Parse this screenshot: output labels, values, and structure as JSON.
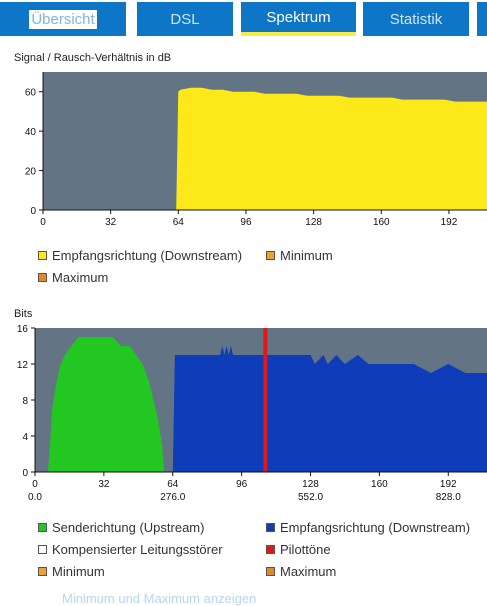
{
  "tabs": [
    {
      "label": "Übersicht",
      "active": false
    },
    {
      "label": "DSL",
      "active": false
    },
    {
      "label": "Spektrum",
      "active": true
    },
    {
      "label": "Statistik",
      "active": false
    }
  ],
  "colors": {
    "tab_bg": "#0d76c6",
    "tab_active_underline": "#f3ed45",
    "plot_bg": "#637584",
    "downstream_snr": "#fde91a",
    "upstream_bits": "#22c722",
    "downstream_bits": "#0f3cb8",
    "pilot": "#e01818",
    "minimum": "#f0a030",
    "maximum": "#e08828",
    "noise": "#ffffff"
  },
  "snr_chart": {
    "title": "Signal / Rausch-Verhältnis in dB",
    "legend": [
      {
        "label": "Empfangsrichtung (Downstream)",
        "color": "#fde91a"
      },
      {
        "label": "Minimum",
        "color": "#f0a030"
      },
      {
        "label": "Maximum",
        "color": "#e08828"
      }
    ]
  },
  "bits_chart": {
    "title": "Bits",
    "legend": [
      {
        "label": "Senderichtung (Upstream)",
        "color": "#22c722"
      },
      {
        "label": "Empfangsrichtung (Downstream)",
        "color": "#0f3cb8"
      },
      {
        "label": "Kompensierter Leitungsstörer",
        "color": "#ffffff"
      },
      {
        "label": "Pilottöne",
        "color": "#e01818"
      },
      {
        "label": "Minimum",
        "color": "#f0a030"
      },
      {
        "label": "Maximum",
        "color": "#e08828"
      }
    ]
  },
  "chart_data": [
    {
      "type": "area",
      "title": "Signal / Rausch-Verhältnis in dB",
      "xlabel": "",
      "ylabel": "",
      "xlim": [
        0,
        210
      ],
      "ylim": [
        0,
        70
      ],
      "x_ticks": [
        "0",
        "32",
        "64",
        "96",
        "128",
        "160",
        "192"
      ],
      "y_ticks": [
        "0",
        "20",
        "40",
        "60"
      ],
      "grid": false,
      "legend_position": "bottom",
      "series": [
        {
          "name": "Empfangsrichtung (Downstream)",
          "x": [
            0,
            63,
            64,
            65,
            70,
            75,
            80,
            85,
            90,
            95,
            100,
            105,
            110,
            115,
            120,
            125,
            130,
            135,
            140,
            145,
            150,
            155,
            160,
            165,
            170,
            175,
            180,
            185,
            190,
            195,
            200,
            205,
            210
          ],
          "y": [
            0,
            0,
            60,
            61,
            62,
            62,
            61,
            61,
            60,
            60,
            60,
            59,
            59,
            59,
            59,
            58,
            58,
            58,
            58,
            57,
            57,
            57,
            57,
            57,
            56,
            56,
            56,
            56,
            56,
            55,
            55,
            55,
            55
          ]
        }
      ]
    },
    {
      "type": "area",
      "title": "Bits",
      "xlabel": "",
      "ylabel": "",
      "xlim": [
        0,
        210
      ],
      "ylim": [
        0,
        16
      ],
      "x_ticks": [
        "0",
        "32",
        "64",
        "96",
        "128",
        "160",
        "192"
      ],
      "x_ticks_secondary": [
        "0.0",
        "276.0",
        "552.0",
        "828.0"
      ],
      "y_ticks": [
        "0",
        "4",
        "8",
        "12",
        "16"
      ],
      "grid": false,
      "legend_position": "bottom",
      "series": [
        {
          "name": "Senderichtung (Upstream)",
          "x": [
            6,
            7,
            8,
            10,
            12,
            14,
            17,
            20,
            24,
            28,
            32,
            36,
            40,
            44,
            47,
            50,
            53,
            55,
            57,
            59,
            60
          ],
          "y": [
            0,
            3,
            7,
            10,
            12,
            13,
            14,
            15,
            15,
            15,
            15,
            15,
            14,
            14,
            13,
            12,
            10,
            8,
            6,
            3,
            0
          ]
        },
        {
          "name": "Empfangsrichtung (Downstream)",
          "x": [
            64,
            65,
            86,
            87,
            88,
            89,
            90,
            91,
            92,
            93,
            128,
            130,
            134,
            136,
            140,
            144,
            150,
            155,
            160,
            168,
            176,
            184,
            192,
            200,
            210
          ],
          "y": [
            0,
            13,
            13,
            14,
            13,
            14,
            13,
            14,
            13,
            13,
            13,
            12,
            13,
            12,
            13,
            12,
            13,
            12,
            12,
            12,
            12,
            11,
            12,
            11,
            11
          ]
        },
        {
          "name": "Pilottöne",
          "x": [
            107
          ],
          "y": [
            16
          ]
        }
      ]
    }
  ]
}
